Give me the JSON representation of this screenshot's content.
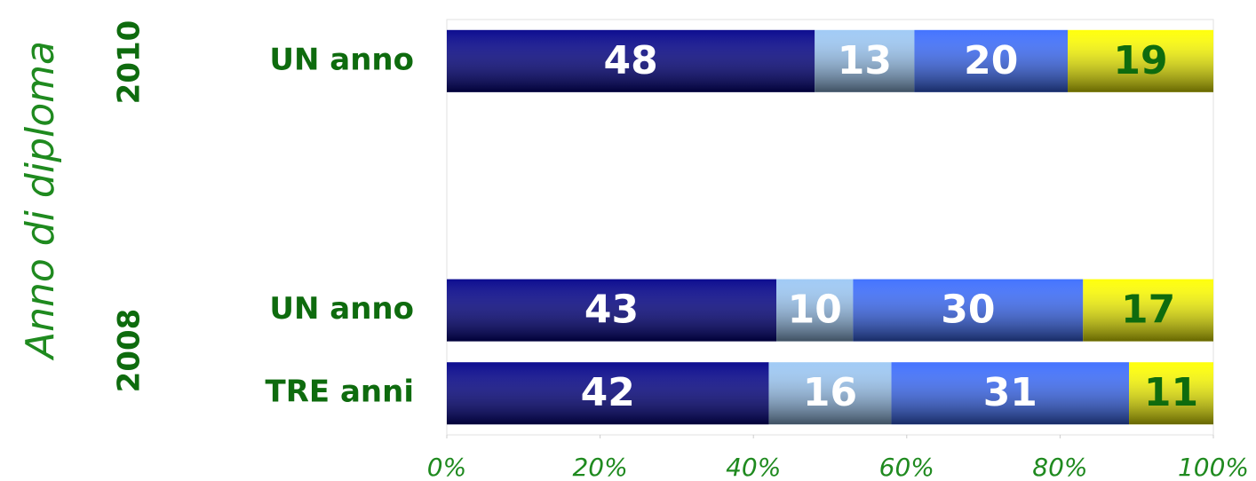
{
  "chart_data": {
    "type": "stacked_bar_horizontal",
    "y_axis_label": "Anno di diploma",
    "groups": [
      "2010",
      "2008"
    ],
    "categories": [
      "UN anno",
      null,
      null,
      "UN anno",
      "TRE anni"
    ],
    "series": [
      {
        "color": "#00008a",
        "label_color": "#ffffff",
        "values": [
          48,
          null,
          null,
          43,
          42
        ]
      },
      {
        "color": "#9cc8f5",
        "label_color": "#ffffff",
        "values": [
          13,
          null,
          null,
          10,
          16
        ]
      },
      {
        "color": "#3a6cff",
        "label_color": "#ffffff",
        "values": [
          20,
          null,
          null,
          30,
          31
        ]
      },
      {
        "color": "#ffff00",
        "label_color": "#0e6b0e",
        "values": [
          19,
          null,
          null,
          17,
          11
        ]
      }
    ],
    "xlim": [
      0,
      100
    ],
    "xticks": [
      {
        "value": 0,
        "label": "0%"
      },
      {
        "value": 20,
        "label": "20%"
      },
      {
        "value": 40,
        "label": "40%"
      },
      {
        "value": 60,
        "label": "60%"
      },
      {
        "value": 80,
        "label": "80%"
      },
      {
        "value": 100,
        "label": "100%"
      }
    ]
  }
}
